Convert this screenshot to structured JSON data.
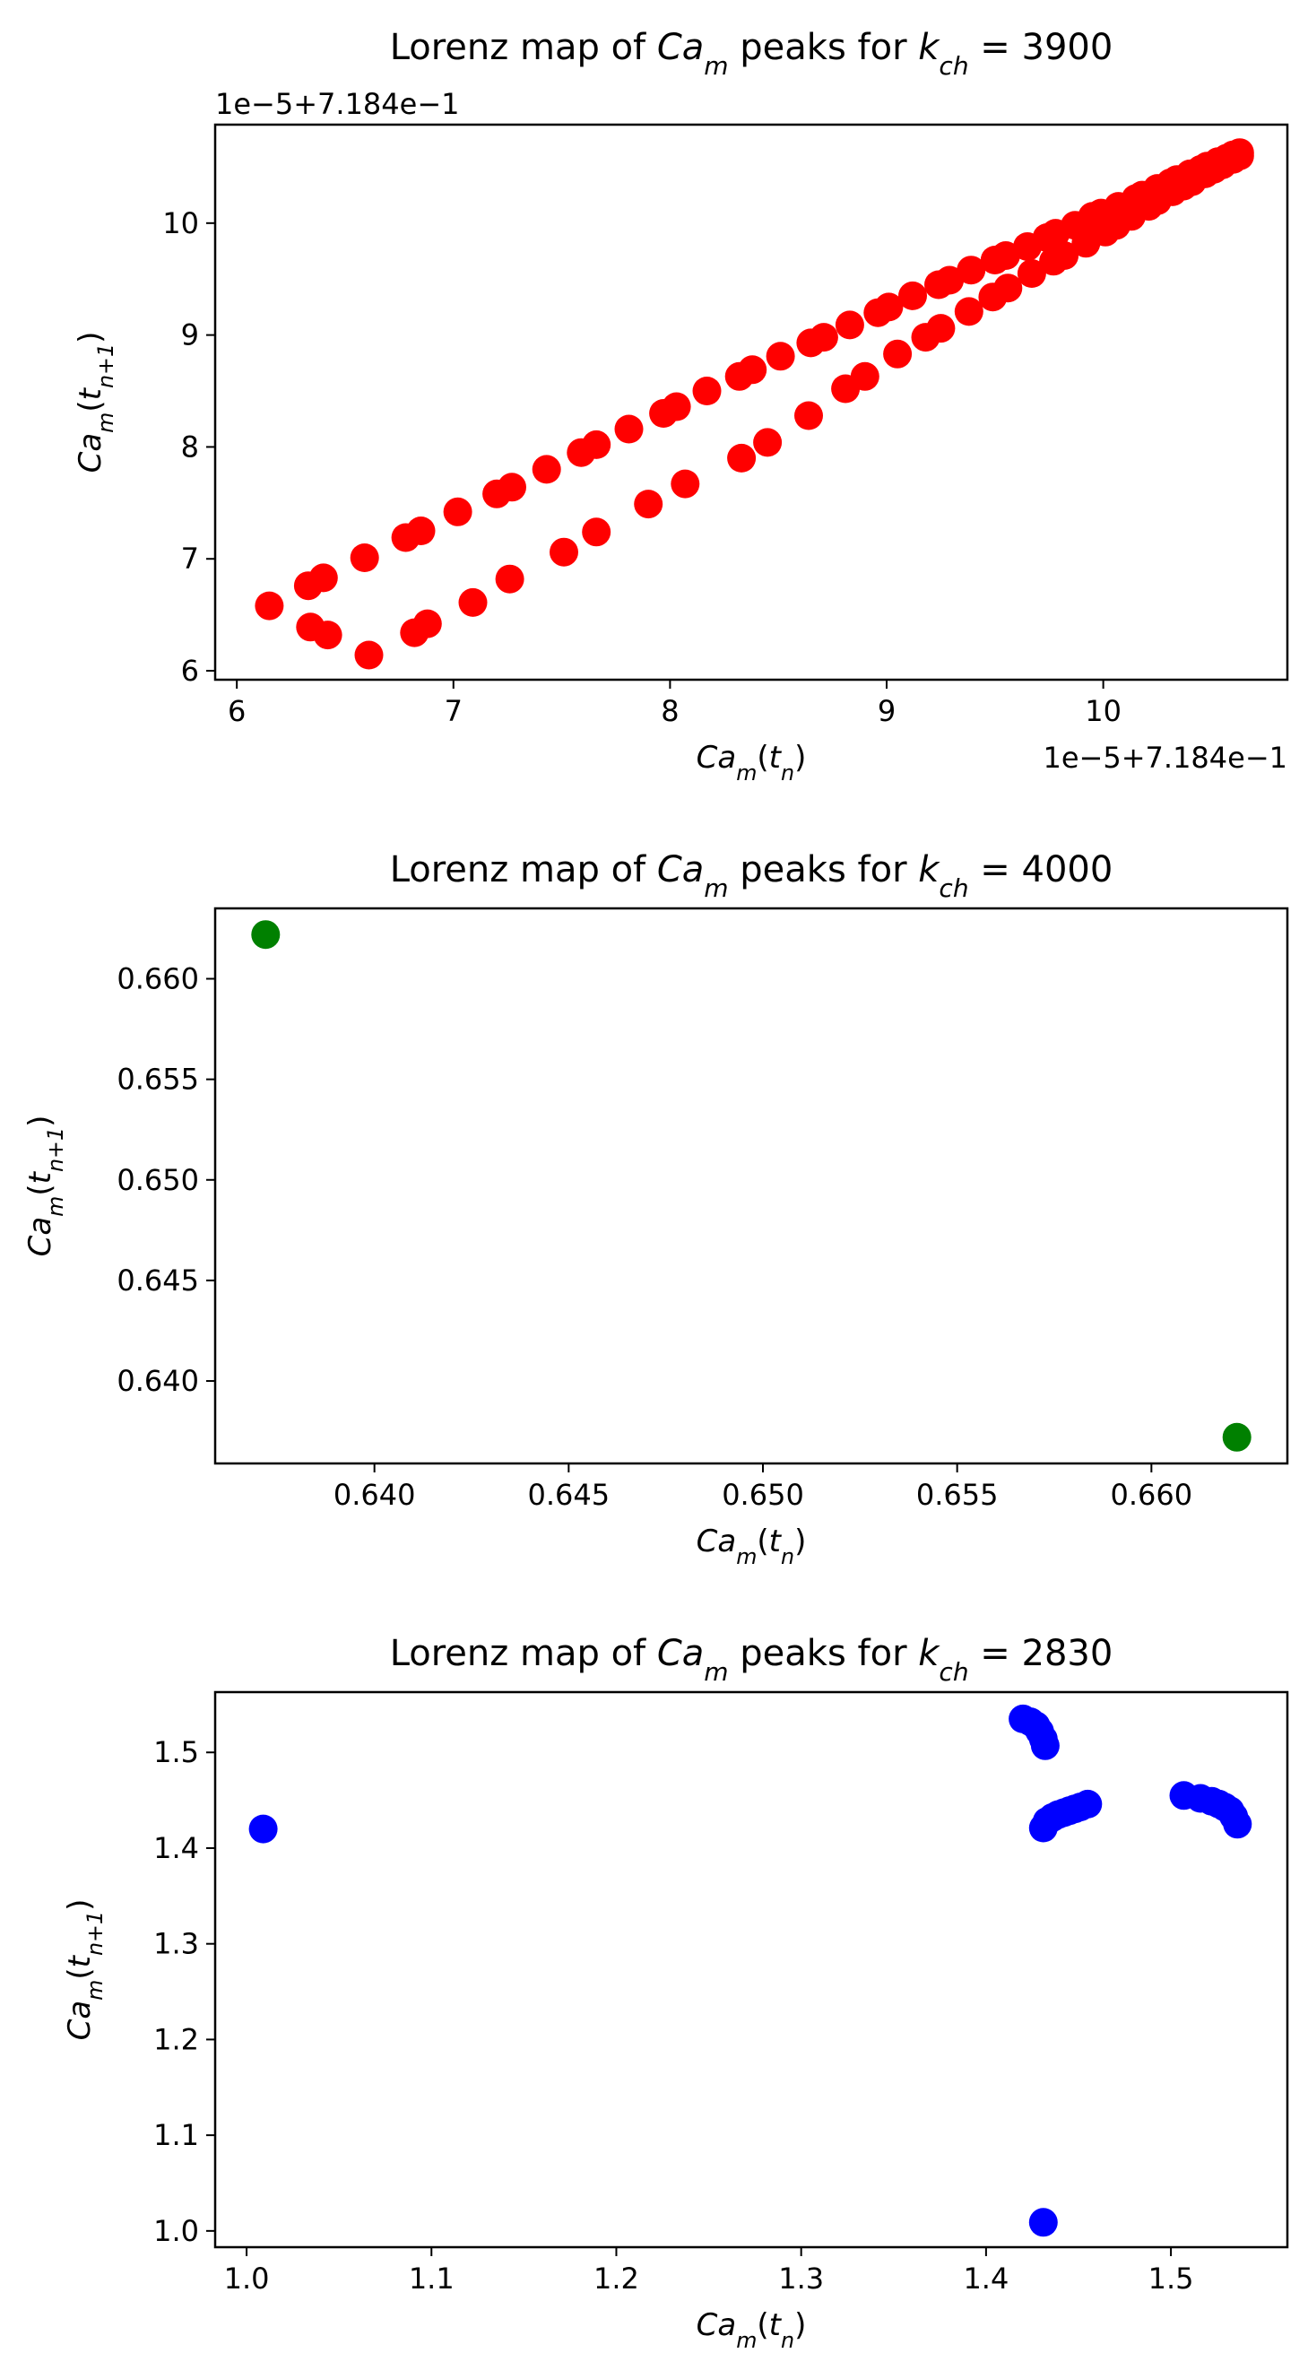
{
  "chart_data": [
    {
      "type": "scatter",
      "title": "Lorenz map of Ca_m peaks for k_ch = 3900",
      "title_parts": {
        "prefix": "Lorenz map of ",
        "var": "Ca",
        "var_sub": "m",
        "middle": " peaks for ",
        "k": "k",
        "k_sub": "ch",
        "suffix": " = 3900"
      },
      "xlabel": "Ca_m(t_n)",
      "ylabel": "Ca_m(t_{n+1})",
      "x_offset_label": "1e−5+7.184e−1",
      "y_offset_label": "1e−5+7.184e−1",
      "xlim": [
        5.9,
        10.85
      ],
      "ylim": [
        5.92,
        10.88
      ],
      "xticks": [
        6,
        7,
        8,
        9,
        10
      ],
      "yticks": [
        6,
        7,
        8,
        9,
        10
      ],
      "grid": false,
      "color": "#ff0000",
      "points": [
        [
          6.15,
          6.58
        ],
        [
          6.33,
          6.76
        ],
        [
          6.4,
          6.83
        ],
        [
          6.59,
          7.01
        ],
        [
          6.78,
          7.19
        ],
        [
          6.85,
          7.25
        ],
        [
          7.02,
          7.42
        ],
        [
          7.2,
          7.58
        ],
        [
          7.27,
          7.64
        ],
        [
          7.43,
          7.8
        ],
        [
          7.59,
          7.95
        ],
        [
          7.66,
          8.02
        ],
        [
          7.81,
          8.16
        ],
        [
          7.97,
          8.3
        ],
        [
          8.03,
          8.36
        ],
        [
          8.17,
          8.5
        ],
        [
          8.32,
          8.63
        ],
        [
          8.38,
          8.69
        ],
        [
          8.51,
          8.81
        ],
        [
          8.65,
          8.93
        ],
        [
          8.71,
          8.98
        ],
        [
          8.83,
          9.09
        ],
        [
          8.96,
          9.2
        ],
        [
          9.01,
          9.25
        ],
        [
          9.12,
          9.35
        ],
        [
          9.24,
          9.45
        ],
        [
          9.29,
          9.49
        ],
        [
          9.39,
          9.58
        ],
        [
          9.5,
          9.67
        ],
        [
          9.55,
          9.71
        ],
        [
          9.65,
          9.79
        ],
        [
          9.74,
          9.87
        ],
        [
          9.78,
          9.91
        ],
        [
          9.87,
          9.98
        ],
        [
          9.95,
          10.06
        ],
        [
          9.99,
          10.09
        ],
        [
          10.07,
          10.15
        ],
        [
          10.15,
          10.22
        ],
        [
          10.18,
          10.25
        ],
        [
          10.25,
          10.31
        ],
        [
          10.31,
          10.36
        ],
        [
          10.34,
          10.39
        ],
        [
          10.4,
          10.44
        ],
        [
          10.45,
          10.48
        ],
        [
          10.48,
          10.51
        ],
        [
          10.53,
          10.55
        ],
        [
          10.57,
          10.58
        ],
        [
          10.6,
          10.61
        ],
        [
          10.63,
          10.63
        ],
        [
          10.63,
          10.6
        ],
        [
          10.6,
          10.57
        ],
        [
          10.55,
          10.52
        ],
        [
          10.51,
          10.48
        ],
        [
          10.47,
          10.44
        ],
        [
          10.41,
          10.37
        ],
        [
          10.37,
          10.33
        ],
        [
          10.32,
          10.28
        ],
        [
          10.25,
          10.2
        ],
        [
          10.21,
          10.15
        ],
        [
          10.13,
          10.06
        ],
        [
          10.06,
          9.98
        ],
        [
          10.01,
          9.92
        ],
        [
          9.92,
          9.82
        ],
        [
          9.82,
          9.71
        ],
        [
          9.77,
          9.66
        ],
        [
          9.67,
          9.55
        ],
        [
          9.56,
          9.42
        ],
        [
          9.49,
          9.34
        ],
        [
          9.38,
          9.21
        ],
        [
          9.25,
          9.06
        ],
        [
          9.18,
          8.98
        ],
        [
          9.05,
          8.83
        ],
        [
          8.9,
          8.63
        ],
        [
          8.81,
          8.52
        ],
        [
          8.64,
          8.28
        ],
        [
          8.45,
          8.04
        ],
        [
          8.33,
          7.9
        ],
        [
          8.07,
          7.67
        ],
        [
          7.9,
          7.49
        ],
        [
          7.66,
          7.24
        ],
        [
          7.51,
          7.06
        ],
        [
          7.26,
          6.82
        ],
        [
          7.09,
          6.61
        ],
        [
          6.88,
          6.42
        ],
        [
          6.82,
          6.34
        ],
        [
          6.61,
          6.14
        ],
        [
          6.42,
          6.32
        ],
        [
          6.34,
          6.39
        ]
      ]
    },
    {
      "type": "scatter",
      "title": "Lorenz map of Ca_m peaks for k_ch = 4000",
      "title_parts": {
        "prefix": "Lorenz map of ",
        "var": "Ca",
        "var_sub": "m",
        "middle": " peaks for ",
        "k": "k",
        "k_sub": "ch",
        "suffix": " = 4000"
      },
      "xlabel": "Ca_m(t_n)",
      "ylabel": "Ca_m(t_{n+1})",
      "xlim": [
        0.6359,
        0.6635
      ],
      "ylim": [
        0.6359,
        0.6635
      ],
      "xticks": [
        0.64,
        0.645,
        0.65,
        0.655,
        0.66
      ],
      "yticks": [
        0.64,
        0.645,
        0.65,
        0.655,
        0.66
      ],
      "tick_decimals": 3,
      "grid": false,
      "color": "#008000",
      "points": [
        [
          0.6372,
          0.6622
        ],
        [
          0.6622,
          0.6372
        ]
      ]
    },
    {
      "type": "scatter",
      "title": "Lorenz map of Ca_m peaks for k_ch = 2830",
      "title_parts": {
        "prefix": "Lorenz map of ",
        "var": "Ca",
        "var_sub": "m",
        "middle": " peaks for ",
        "k": "k",
        "k_sub": "ch",
        "suffix": " = 2830"
      },
      "xlabel": "Ca_m(t_n)",
      "ylabel": "Ca_m(t_{n+1})",
      "xlim": [
        0.983,
        1.563
      ],
      "ylim": [
        0.983,
        1.563
      ],
      "xticks": [
        1.0,
        1.1,
        1.2,
        1.3,
        1.4,
        1.5
      ],
      "yticks": [
        1.0,
        1.1,
        1.2,
        1.3,
        1.4,
        1.5
      ],
      "tick_decimals": 1,
      "grid": false,
      "color": "#0000ff",
      "points": [
        [
          1.009,
          1.42
        ],
        [
          1.431,
          1.009
        ],
        [
          1.42,
          1.535
        ],
        [
          1.424,
          1.532
        ],
        [
          1.427,
          1.528
        ],
        [
          1.429,
          1.522
        ],
        [
          1.431,
          1.514
        ],
        [
          1.432,
          1.507
        ],
        [
          1.431,
          1.421
        ],
        [
          1.433,
          1.428
        ],
        [
          1.436,
          1.432
        ],
        [
          1.439,
          1.435
        ],
        [
          1.442,
          1.437
        ],
        [
          1.445,
          1.439
        ],
        [
          1.448,
          1.441
        ],
        [
          1.451,
          1.443
        ],
        [
          1.455,
          1.446
        ],
        [
          1.507,
          1.455
        ],
        [
          1.516,
          1.452
        ],
        [
          1.522,
          1.449
        ],
        [
          1.526,
          1.446
        ],
        [
          1.529,
          1.443
        ],
        [
          1.532,
          1.439
        ],
        [
          1.534,
          1.433
        ],
        [
          1.536,
          1.425
        ]
      ]
    }
  ]
}
